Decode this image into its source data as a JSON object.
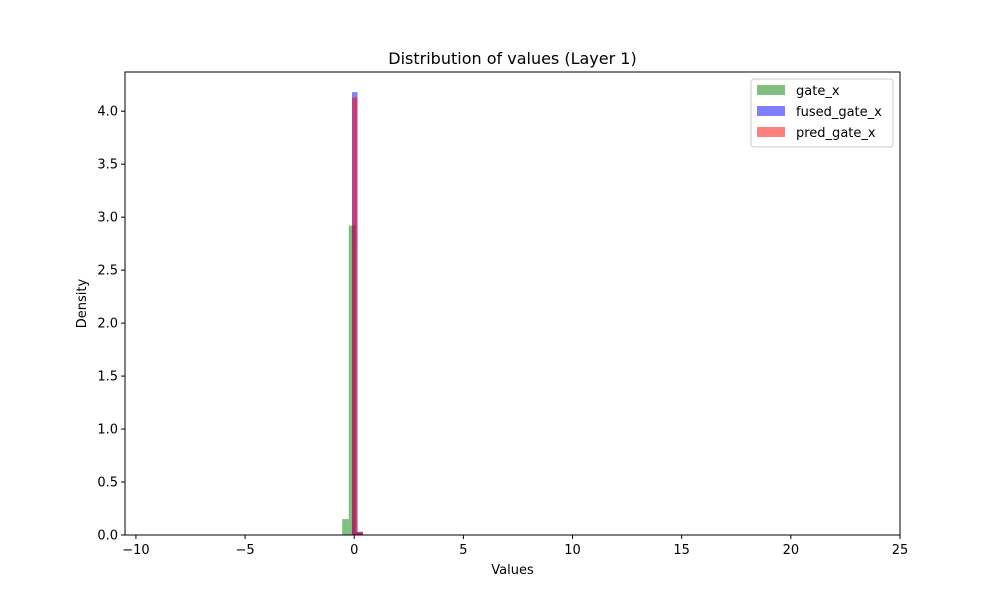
{
  "chart_data": {
    "type": "histogram",
    "title": "Distribution of values (Layer 1)",
    "xlabel": "Values",
    "ylabel": "Density",
    "xlim": [
      -10.5,
      25.0
    ],
    "ylim": [
      0,
      4.37
    ],
    "x_ticks": [
      -10,
      -5,
      0,
      5,
      10,
      15,
      20,
      25
    ],
    "x_tick_labels": [
      "−10",
      "−5",
      "0",
      "5",
      "10",
      "15",
      "20",
      "25"
    ],
    "y_ticks": [
      0,
      0.5,
      1.0,
      1.5,
      2.0,
      2.5,
      3.0,
      3.5,
      4.0
    ],
    "y_tick_labels": [
      "0.0",
      "0.5",
      "1.0",
      "1.5",
      "2.0",
      "2.5",
      "3.0",
      "3.5",
      "4.0"
    ],
    "grid": false,
    "legend_position": "top-right",
    "series": [
      {
        "name": "gate_x",
        "color": "#008000",
        "alpha": 0.5,
        "bins": [
          {
            "x0": -0.55,
            "x1": -0.25,
            "value": 0.15
          },
          {
            "x0": -0.25,
            "x1": 0.05,
            "value": 2.92
          },
          {
            "x0": 0.05,
            "x1": 0.35,
            "value": 0.02
          }
        ]
      },
      {
        "name": "fused_gate_x",
        "color": "#0000ff",
        "alpha": 0.5,
        "bins": [
          {
            "x0": -0.1,
            "x1": 0.15,
            "value": 4.18
          },
          {
            "x0": 0.15,
            "x1": 0.4,
            "value": 0.03
          }
        ]
      },
      {
        "name": "pred_gate_x",
        "color": "#ff0000",
        "alpha": 0.5,
        "bins": [
          {
            "x0": -0.1,
            "x1": 0.15,
            "value": 4.13
          },
          {
            "x0": 0.15,
            "x1": 0.4,
            "value": 0.03
          }
        ]
      }
    ]
  }
}
